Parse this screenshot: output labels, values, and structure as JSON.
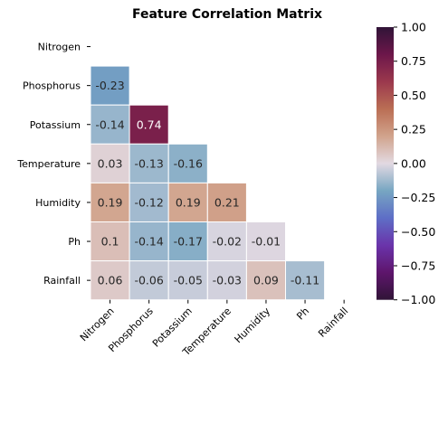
{
  "chart_data": {
    "type": "heatmap",
    "title": "Feature Correlation Matrix",
    "xlabel": "",
    "ylabel": "",
    "mask": "upper-triangle-including-diagonal",
    "labels": [
      "Nitrogen",
      "Phosphorus",
      "Potassium",
      "Temperature",
      "Humidity",
      "Ph",
      "Rainfall"
    ],
    "matrix": [
      [
        null,
        null,
        null,
        null,
        null,
        null,
        null
      ],
      [
        -0.23,
        null,
        null,
        null,
        null,
        null,
        null
      ],
      [
        -0.14,
        0.74,
        null,
        null,
        null,
        null,
        null
      ],
      [
        0.03,
        -0.13,
        -0.16,
        null,
        null,
        null,
        null
      ],
      [
        0.19,
        -0.12,
        0.19,
        0.21,
        null,
        null,
        null
      ],
      [
        0.1,
        -0.14,
        -0.17,
        -0.02,
        -0.01,
        null,
        null
      ],
      [
        0.06,
        -0.06,
        -0.05,
        -0.03,
        0.09,
        -0.11,
        null
      ]
    ],
    "colorbar": {
      "colormap": "twilight_shifted",
      "range": [
        -1.0,
        1.0
      ],
      "ticks": [
        1.0,
        0.75,
        0.5,
        0.25,
        0.0,
        -0.25,
        -0.5,
        -0.75,
        -1.0
      ],
      "tick_labels": [
        "1.00",
        "0.75",
        "0.50",
        "0.25",
        "0.00",
        "−0.25",
        "−0.50",
        "−0.75",
        "−1.00"
      ],
      "placement": "right"
    },
    "colors": {
      "cell_border": "#ffffff",
      "text_dark": "#262626",
      "text_light": "#ffffff"
    }
  }
}
